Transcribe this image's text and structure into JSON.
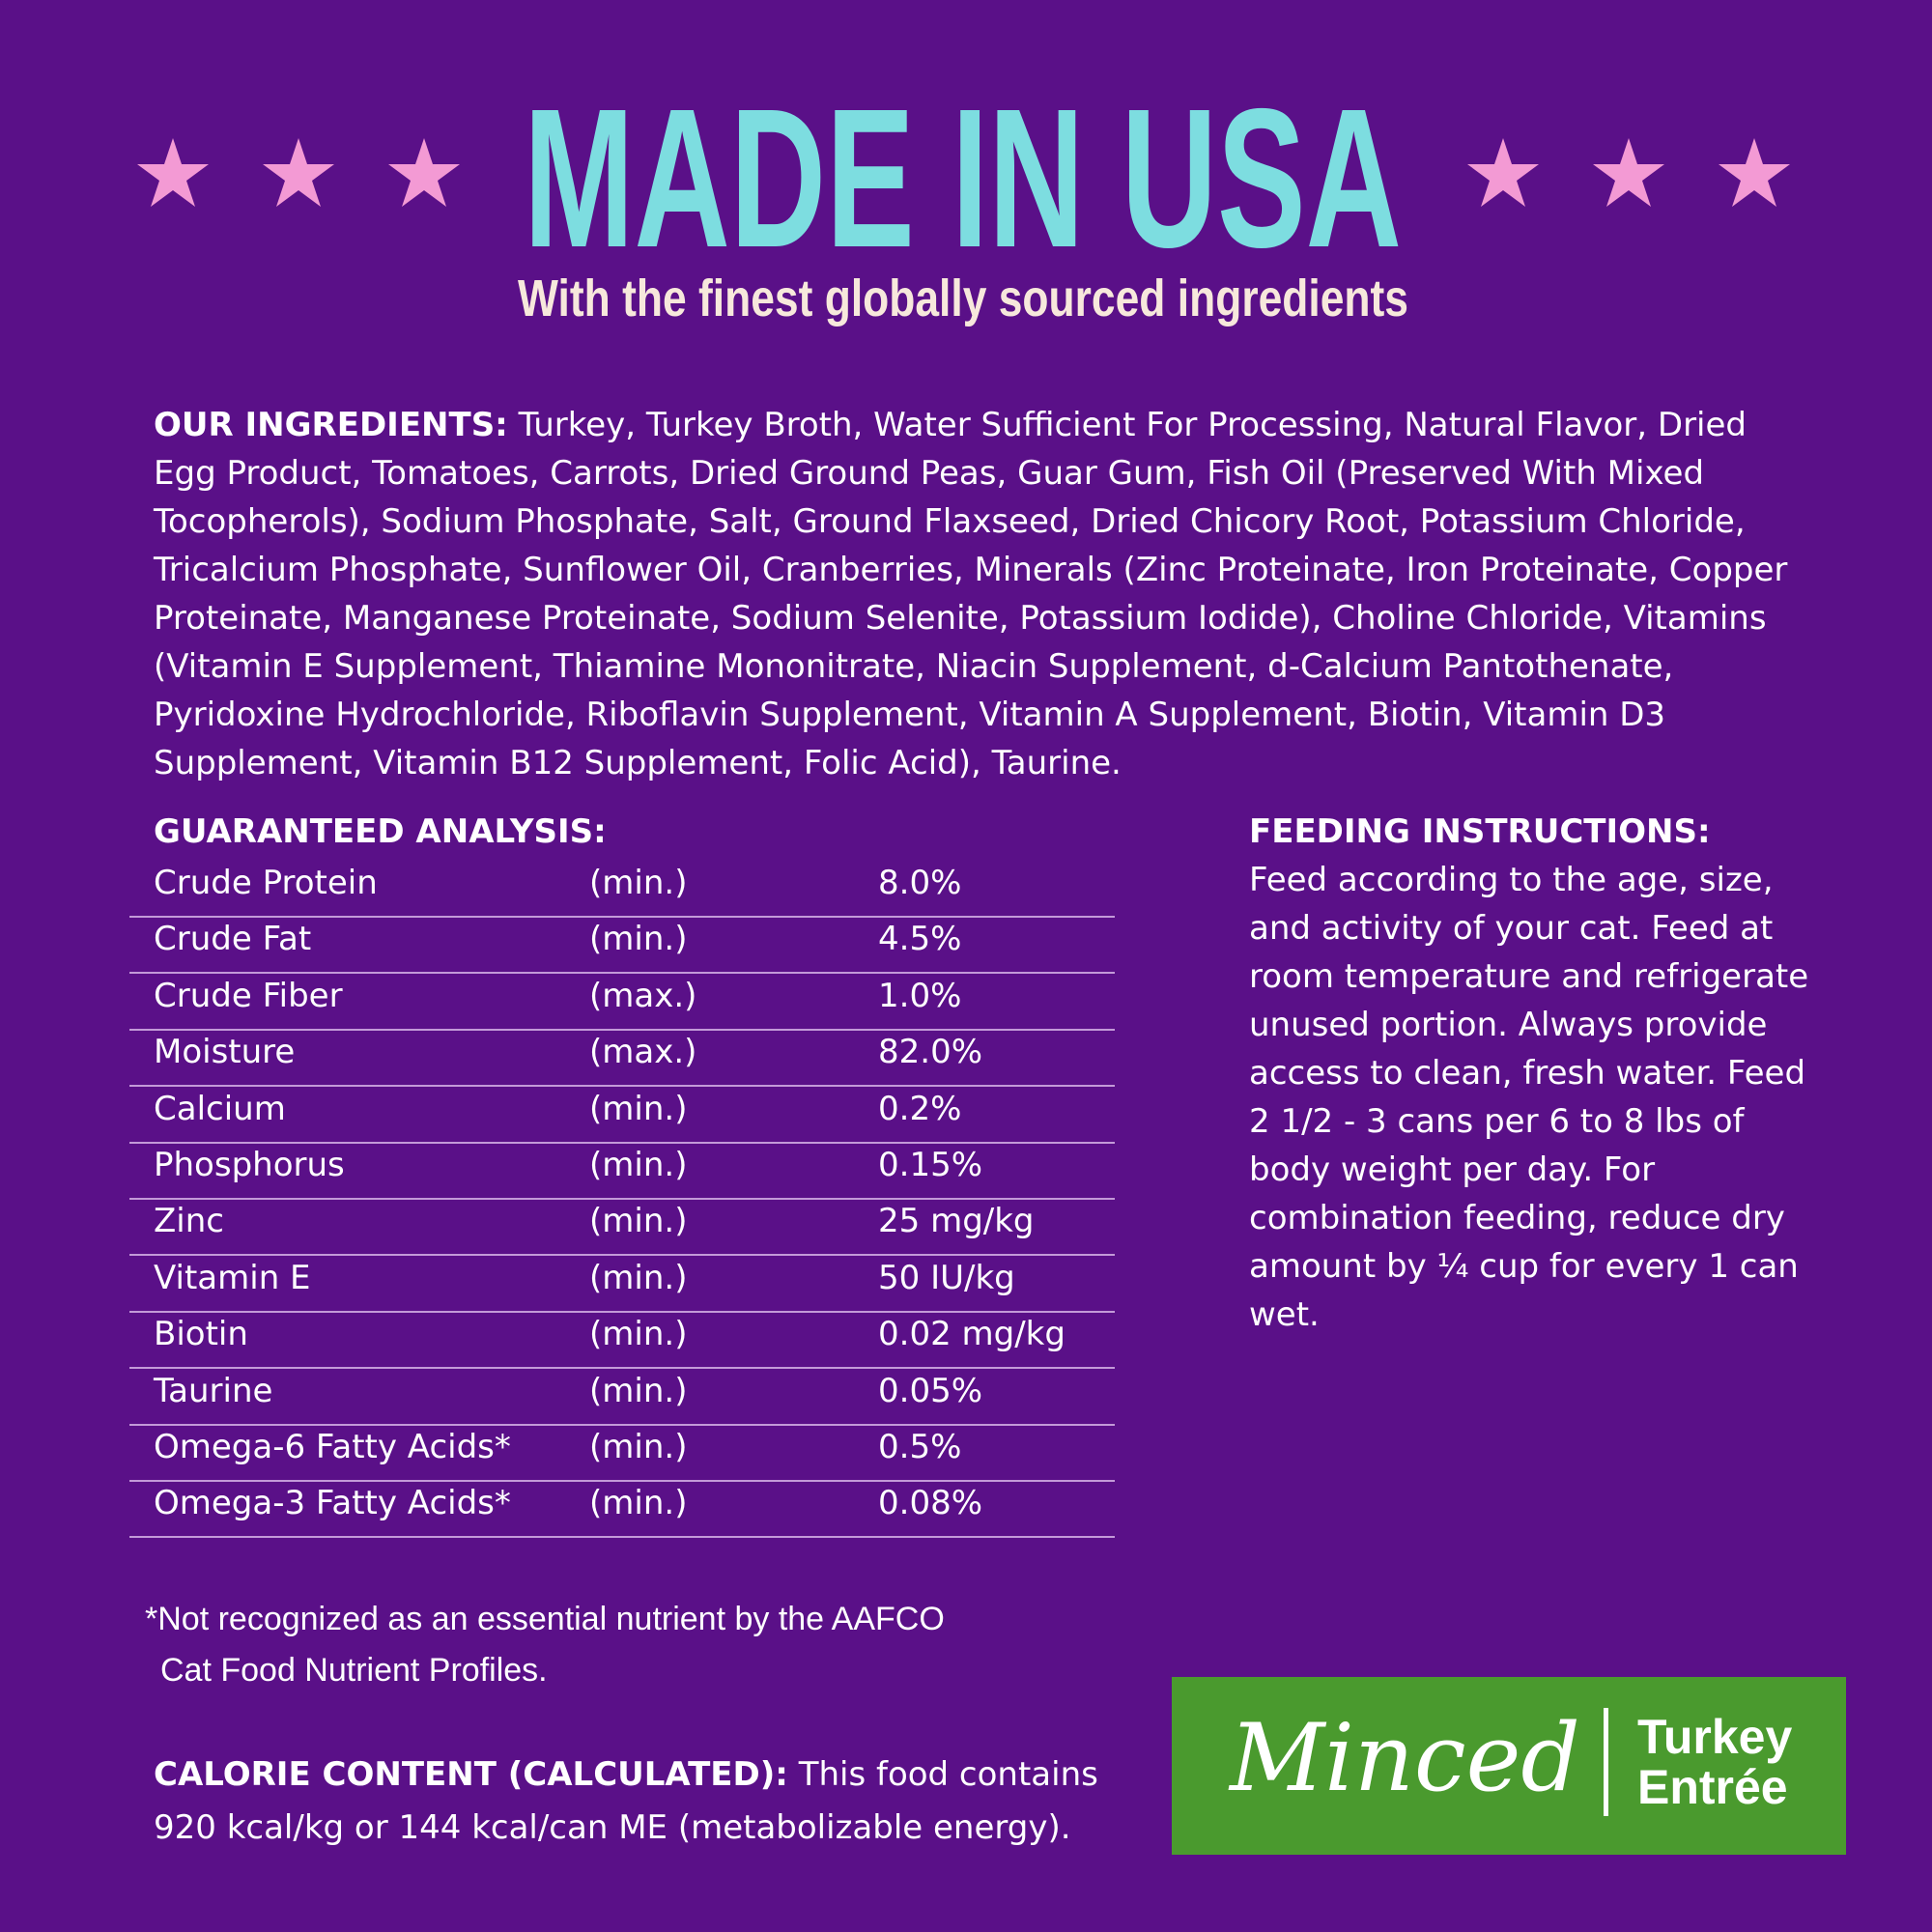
{
  "header": {
    "title": "MADE IN USA",
    "subtitle": "With the finest globally sourced ingredients"
  },
  "ingredients": {
    "label": "OUR INGREDIENTS:",
    "text": "Turkey, Turkey Broth, Water Sufficient For Processing, Natural Flavor, Dried Egg Product, Tomatoes, Carrots, Dried Ground Peas, Guar Gum, Fish Oil (Preserved With Mixed Tocopherols), Sodium Phosphate, Salt, Ground Flaxseed, Dried Chicory Root, Potassium Chloride, Tricalcium Phosphate, Sunflower Oil, Cranberries, Minerals (Zinc Proteinate, Iron Proteinate, Copper Proteinate, Manganese Proteinate, Sodium Selenite, Potassium Iodide), Choline Chloride, Vitamins (Vitamin E Supplement, Thiamine Mononitrate, Niacin Supplement, d-Calcium Pantothenate, Pyridoxine Hydrochloride, Riboflavin Supplement, Vitamin A Supplement, Biotin, Vitamin D3 Supplement, Vitamin B12 Supplement, Folic Acid), Taurine."
  },
  "analysis": {
    "heading": "GUARANTEED ANALYSIS:",
    "rows": [
      [
        "Crude Protein",
        "(min.)",
        "8.0%"
      ],
      [
        "Crude Fat",
        "(min.)",
        "4.5%"
      ],
      [
        "Crude Fiber",
        "(max.)",
        "1.0%"
      ],
      [
        "Moisture",
        "(max.)",
        "82.0%"
      ],
      [
        "Calcium",
        "(min.)",
        "0.2%"
      ],
      [
        "Phosphorus",
        "(min.)",
        "0.15%"
      ],
      [
        "Zinc",
        "(min.)",
        "25 mg/kg"
      ],
      [
        "Vitamin E",
        "(min.)",
        "50 IU/kg"
      ],
      [
        "Biotin",
        "(min.)",
        "0.02 mg/kg"
      ],
      [
        "Taurine",
        "(min.)",
        "0.05%"
      ],
      [
        "Omega-6 Fatty Acids*",
        "(min.)",
        "0.5%"
      ],
      [
        "Omega-3 Fatty Acids*",
        "(min.)",
        "0.08%"
      ]
    ]
  },
  "feeding": {
    "heading": "FEEDING INSTRUCTIONS:",
    "text": "Feed according to the age, size, and activity of your cat. Feed at room temperature and refrigerate unused portion. Always provide access to clean, fresh water. Feed 2 1/2 - 3 cans per 6 to 8 lbs of body weight per day. For combination feeding, reduce dry amount by ¼ cup for every 1 can wet."
  },
  "footnote": {
    "line1": "*Not recognized as an essential nutrient by the AAFCO",
    "line2": "Cat Food Nutrient Profiles."
  },
  "calorie": {
    "label": "CALORIE CONTENT (CALCULATED):",
    "text": "This food contains 920 kcal/kg or 144 kcal/can ME (metabolizable energy)."
  },
  "badge": {
    "style": "Minced",
    "flavor_line1": "Turkey",
    "flavor_line2": "Entrée"
  }
}
